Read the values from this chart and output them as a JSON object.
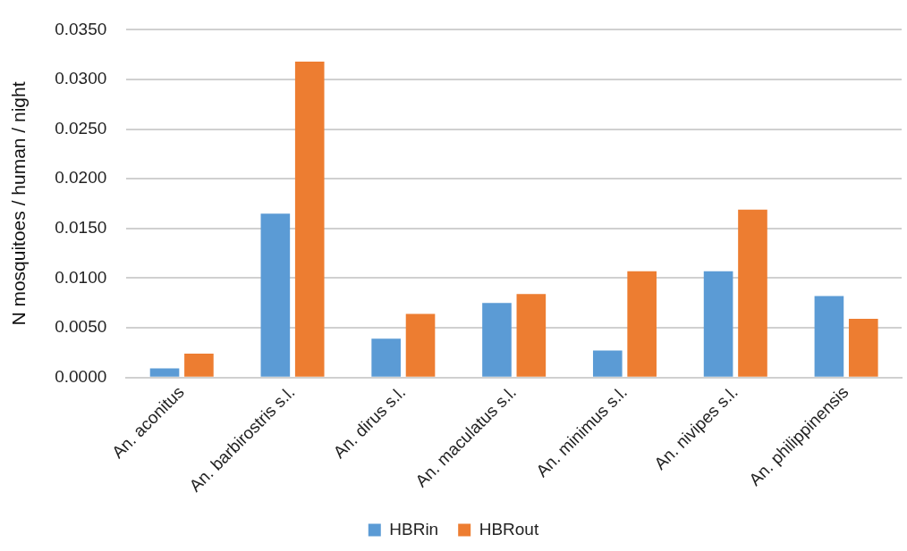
{
  "chart_data": {
    "type": "bar",
    "ylabel": "N mosquitoes / human / night",
    "categories": [
      "An. aconitus",
      "An. barbirostris s.l.",
      "An. dirus s.l.",
      "An. maculatus s.l.",
      "An. minimus s.l.",
      "An. nivipes s.l.",
      "An. philippinensis"
    ],
    "series": [
      {
        "name": "HBRin",
        "color": "#5b9bd5",
        "values": [
          0.0009,
          0.0165,
          0.0039,
          0.0075,
          0.0027,
          0.0107,
          0.0082
        ]
      },
      {
        "name": "HBRout",
        "color": "#ed7d31",
        "values": [
          0.0024,
          0.0318,
          0.0064,
          0.0084,
          0.0107,
          0.0169,
          0.0059
        ]
      }
    ],
    "ylim": [
      0,
      0.035
    ],
    "yticks": [
      {
        "value": 0,
        "label": "0.0000"
      },
      {
        "value": 0.005,
        "label": "0.0050"
      },
      {
        "value": 0.01,
        "label": "0.0100"
      },
      {
        "value": 0.015,
        "label": "0.0150"
      },
      {
        "value": 0.02,
        "label": "0.0200"
      },
      {
        "value": 0.025,
        "label": "0.0250"
      },
      {
        "value": 0.03,
        "label": "0.0300"
      },
      {
        "value": 0.035,
        "label": "0.0350"
      }
    ],
    "grid": "y",
    "legend": "bottom"
  }
}
